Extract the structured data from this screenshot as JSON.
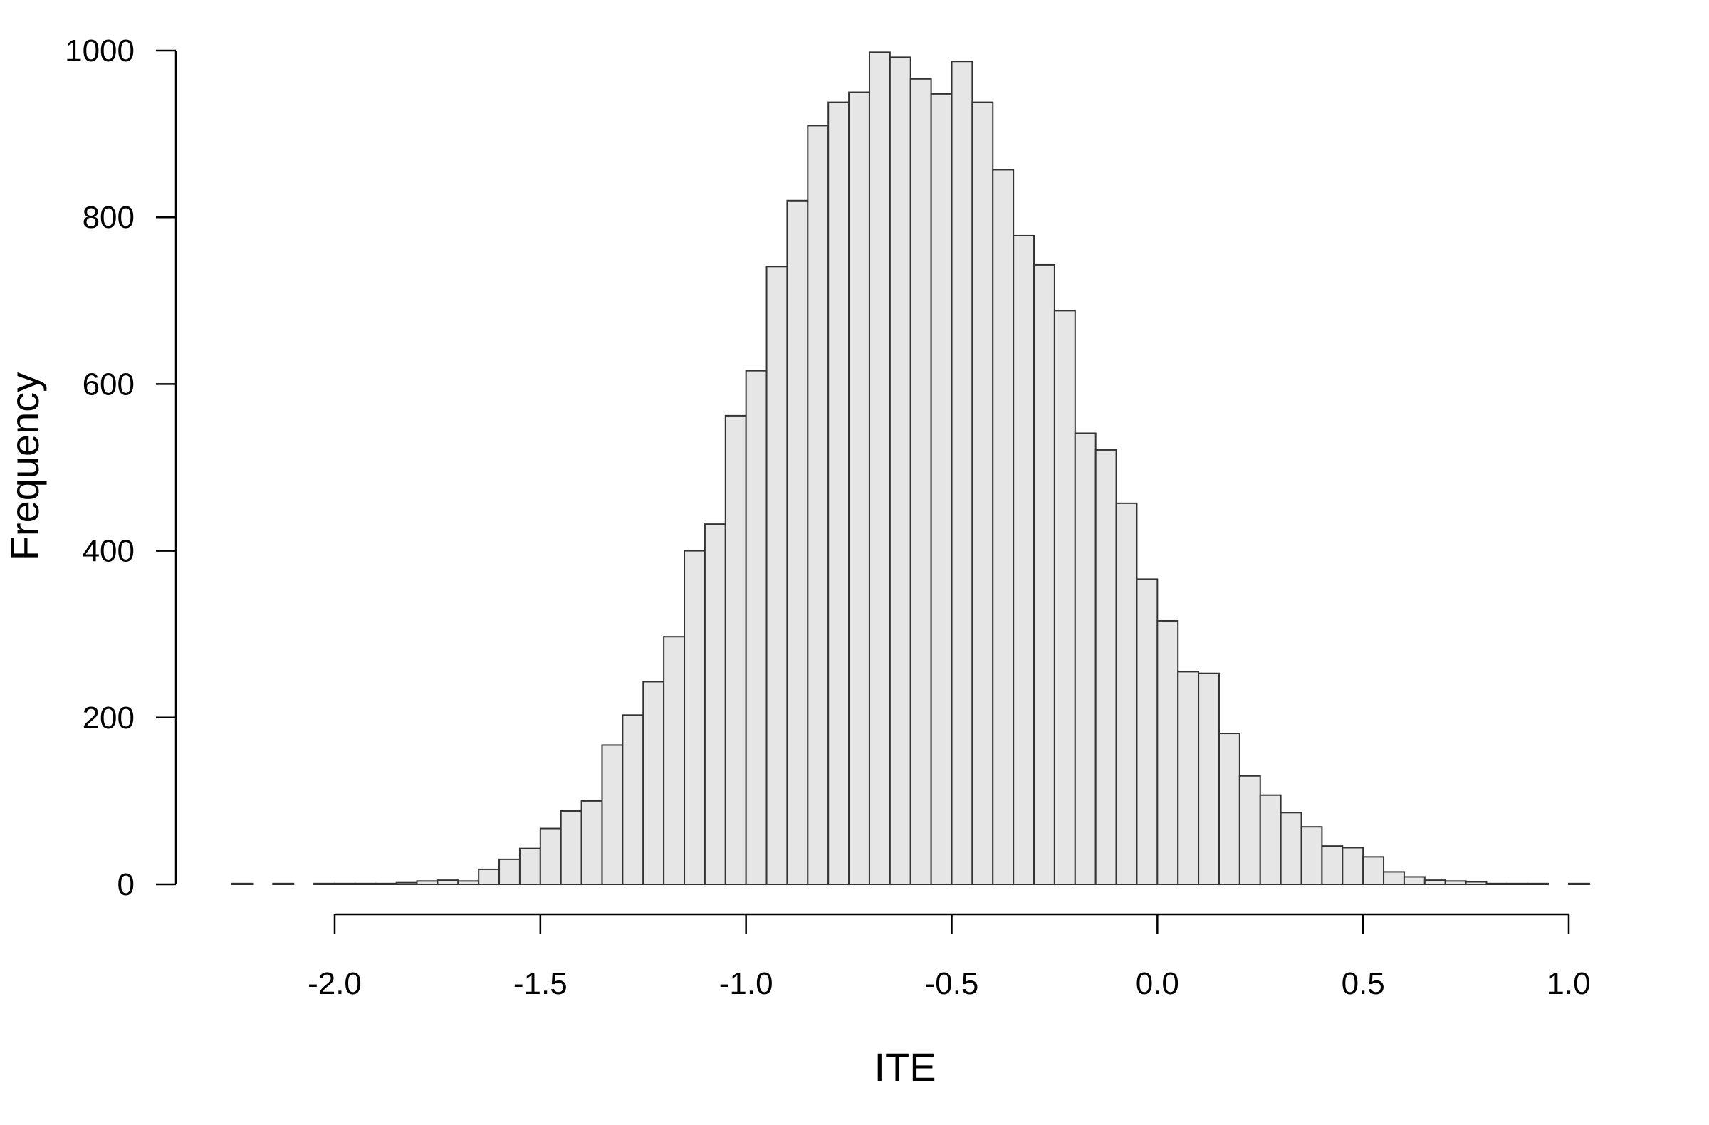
{
  "chart_data": {
    "type": "bar",
    "xlabel": "ITE",
    "ylabel": "Frequency",
    "bin_width": 0.05,
    "bin_start": -2.25,
    "values": [
      1,
      0,
      1,
      0,
      1,
      1,
      1,
      1,
      2,
      4,
      5,
      4,
      18,
      30,
      43,
      67,
      88,
      100,
      167,
      203,
      243,
      297,
      400,
      432,
      562,
      616,
      741,
      820,
      910,
      938,
      950,
      998,
      992,
      966,
      948,
      987,
      938,
      857,
      778,
      743,
      688,
      541,
      521,
      457,
      366,
      316,
      255,
      253,
      181,
      130,
      107,
      86,
      69,
      46,
      44,
      33,
      15,
      9,
      5,
      4,
      3,
      1,
      1,
      1,
      0,
      1
    ],
    "x_ticks": [
      "-2.0",
      "-1.5",
      "-1.0",
      "-0.5",
      "0.0",
      "0.5",
      "1.0"
    ],
    "x_tick_values": [
      -2.0,
      -1.5,
      -1.0,
      -0.5,
      0.0,
      0.5,
      1.0
    ],
    "y_ticks": [
      "0",
      "200",
      "400",
      "600",
      "800",
      "1000"
    ],
    "y_tick_values": [
      0,
      200,
      400,
      600,
      800,
      1000
    ],
    "xlim": [
      -2.25,
      1.05
    ],
    "ylim": [
      0,
      1000
    ],
    "bar_fill": "#e6e6e6",
    "bar_stroke": "#333333",
    "grid": false
  }
}
